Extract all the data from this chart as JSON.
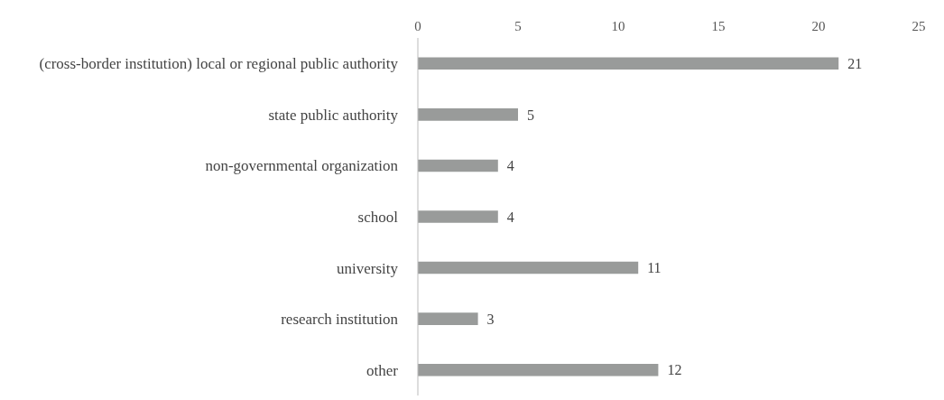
{
  "chart_data": {
    "type": "bar",
    "orientation": "horizontal",
    "categories": [
      "(cross-border institution) local or regional public authority",
      "state public authority",
      "non-governmental organization",
      "school",
      "university",
      "research institution",
      "other"
    ],
    "values": [
      21,
      5,
      4,
      4,
      11,
      3,
      12
    ],
    "color": "#999b9a",
    "xlim": [
      0,
      25
    ],
    "xticks": [
      0,
      5,
      10,
      15,
      20,
      25
    ],
    "grid": false,
    "data_labels": true
  }
}
